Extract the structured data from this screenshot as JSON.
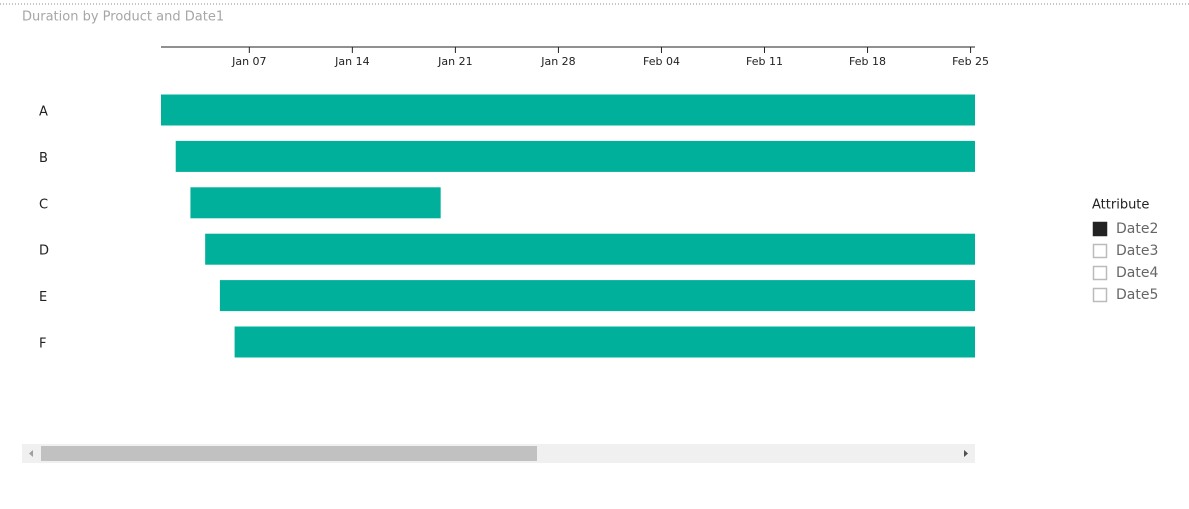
{
  "chart_data": {
    "type": "gantt",
    "title": "Duration by Product and Date1",
    "categories": [
      "A",
      "B",
      "C",
      "D",
      "E",
      "F"
    ],
    "start": [
      1,
      2,
      3,
      4,
      5,
      6
    ],
    "end": [
      56.3,
      56.3,
      20,
      56.3,
      56.3,
      56.3
    ],
    "color": "#01b09a",
    "xlim": [
      1,
      56.3
    ],
    "xticks": [
      {
        "value": 7,
        "label": "Jan 07"
      },
      {
        "value": 14,
        "label": "Jan 14"
      },
      {
        "value": 21,
        "label": "Jan 21"
      },
      {
        "value": 28,
        "label": "Jan 28"
      },
      {
        "value": 35,
        "label": "Feb 04"
      },
      {
        "value": 42,
        "label": "Feb 11"
      },
      {
        "value": 49,
        "label": "Feb 18"
      },
      {
        "value": 56,
        "label": "Feb 25"
      }
    ],
    "legend": {
      "title": "Attribute",
      "items": [
        "Date2",
        "Date3",
        "Date4",
        "Date5"
      ],
      "checked": [
        true,
        false,
        false,
        false
      ]
    }
  }
}
